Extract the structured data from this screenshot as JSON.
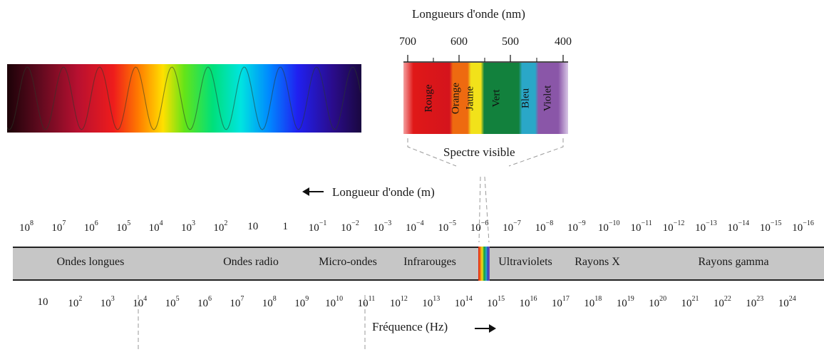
{
  "visible_spectrum": {
    "title": "Longueurs d'onde (nm)",
    "ticks": [
      "700",
      "600",
      "500",
      "400"
    ],
    "colors": [
      {
        "name": "Rouge",
        "hex": "#d4141c"
      },
      {
        "name": "Orange",
        "hex": "#ee6a10"
      },
      {
        "name": "Jaune",
        "hex": "#f2e21a"
      },
      {
        "name": "Vert",
        "hex": "#12813d"
      },
      {
        "name": "Bleu",
        "hex": "#2aa7c8"
      },
      {
        "name": "Violet",
        "hex": "#8a56a8"
      }
    ],
    "caption": "Spectre visible"
  },
  "wavelength_axis": {
    "label": "Longueur d'onde (m)",
    "ticks": [
      {
        "base": "10",
        "exp": "8"
      },
      {
        "base": "10",
        "exp": "7"
      },
      {
        "base": "10",
        "exp": "6"
      },
      {
        "base": "10",
        "exp": "5"
      },
      {
        "base": "10",
        "exp": "4"
      },
      {
        "base": "10",
        "exp": "3"
      },
      {
        "base": "10",
        "exp": "2"
      },
      {
        "base": "10",
        "exp": ""
      },
      {
        "base": "1",
        "exp": ""
      },
      {
        "base": "10",
        "exp": "−1"
      },
      {
        "base": "10",
        "exp": "−2"
      },
      {
        "base": "10",
        "exp": "−3"
      },
      {
        "base": "10",
        "exp": "−4"
      },
      {
        "base": "10",
        "exp": "−5"
      },
      {
        "base": "10",
        "exp": "−6"
      },
      {
        "base": "10",
        "exp": "−7"
      },
      {
        "base": "10",
        "exp": "−8"
      },
      {
        "base": "10",
        "exp": "−9"
      },
      {
        "base": "10",
        "exp": "−10"
      },
      {
        "base": "10",
        "exp": "−11"
      },
      {
        "base": "10",
        "exp": "−12"
      },
      {
        "base": "10",
        "exp": "−13"
      },
      {
        "base": "10",
        "exp": "−14"
      },
      {
        "base": "10",
        "exp": "−15"
      },
      {
        "base": "10",
        "exp": "−16"
      }
    ]
  },
  "bands": [
    "Ondes longues",
    "Ondes radio",
    "Micro-ondes",
    "Infrarouges",
    "Ultraviolets",
    "Rayons X",
    "Rayons gamma"
  ],
  "frequency_axis": {
    "label": "Fréquence (Hz)",
    "ticks": [
      {
        "base": "10",
        "exp": ""
      },
      {
        "base": "10",
        "exp": "2"
      },
      {
        "base": "10",
        "exp": "3"
      },
      {
        "base": "10",
        "exp": "4"
      },
      {
        "base": "10",
        "exp": "5"
      },
      {
        "base": "10",
        "exp": "6"
      },
      {
        "base": "10",
        "exp": "7"
      },
      {
        "base": "10",
        "exp": "8"
      },
      {
        "base": "10",
        "exp": "9"
      },
      {
        "base": "10",
        "exp": "10"
      },
      {
        "base": "10",
        "exp": "11"
      },
      {
        "base": "10",
        "exp": "12"
      },
      {
        "base": "10",
        "exp": "13"
      },
      {
        "base": "10",
        "exp": "14"
      },
      {
        "base": "10",
        "exp": "15"
      },
      {
        "base": "10",
        "exp": "16"
      },
      {
        "base": "10",
        "exp": "17"
      },
      {
        "base": "10",
        "exp": "18"
      },
      {
        "base": "10",
        "exp": "19"
      },
      {
        "base": "10",
        "exp": "20"
      },
      {
        "base": "10",
        "exp": "21"
      },
      {
        "base": "10",
        "exp": "22"
      },
      {
        "base": "10",
        "exp": "23"
      },
      {
        "base": "10",
        "exp": "24"
      }
    ]
  },
  "arrows": {
    "wavelength": "left-arrow-icon",
    "frequency": "right-arrow-icon"
  }
}
